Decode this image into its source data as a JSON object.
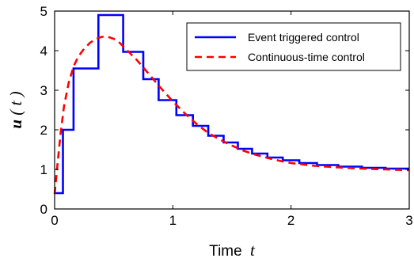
{
  "chart_data": {
    "type": "line",
    "xlabel": "Time",
    "xlabel_var": "t",
    "ylabel_func": "u",
    "ylabel_arg": "t",
    "xlim": [
      0,
      3
    ],
    "ylim": [
      0,
      5
    ],
    "xticks": [
      0,
      1,
      2,
      3
    ],
    "yticks": [
      0,
      1,
      2,
      3,
      4,
      5
    ],
    "grid": false,
    "legend_position": "top-right",
    "series": [
      {
        "name": "Event triggered control",
        "style": "step",
        "color": "#0000ff",
        "dash": "solid",
        "x": [
          0.0,
          0.07,
          0.16,
          0.37,
          0.58,
          0.75,
          0.88,
          1.03,
          1.17,
          1.3,
          1.43,
          1.55,
          1.67,
          1.8,
          1.93,
          2.07,
          2.22,
          2.4,
          2.6,
          2.8,
          3.0
        ],
        "y": [
          0.4,
          2.0,
          3.55,
          4.9,
          3.97,
          3.28,
          2.75,
          2.37,
          2.1,
          1.85,
          1.68,
          1.52,
          1.4,
          1.3,
          1.23,
          1.16,
          1.11,
          1.07,
          1.04,
          1.02,
          1.02
        ]
      },
      {
        "name": "Continuous-time control",
        "style": "line",
        "color": "#ff0000",
        "dash": "dashed",
        "x": [
          0.0,
          0.02,
          0.05,
          0.08,
          0.12,
          0.16,
          0.2,
          0.25,
          0.3,
          0.35,
          0.4,
          0.45,
          0.5,
          0.55,
          0.6,
          0.7,
          0.8,
          0.9,
          1.0,
          1.1,
          1.2,
          1.3,
          1.4,
          1.5,
          1.6,
          1.7,
          1.8,
          1.9,
          2.0,
          2.2,
          2.4,
          2.6,
          2.8,
          3.0
        ],
        "y": [
          0.38,
          1.0,
          1.9,
          2.6,
          3.2,
          3.6,
          3.85,
          4.05,
          4.2,
          4.3,
          4.35,
          4.35,
          4.3,
          4.2,
          4.05,
          3.75,
          3.4,
          3.05,
          2.72,
          2.42,
          2.15,
          1.92,
          1.75,
          1.6,
          1.47,
          1.37,
          1.29,
          1.22,
          1.16,
          1.09,
          1.05,
          1.02,
          1.0,
          0.98
        ]
      }
    ]
  }
}
